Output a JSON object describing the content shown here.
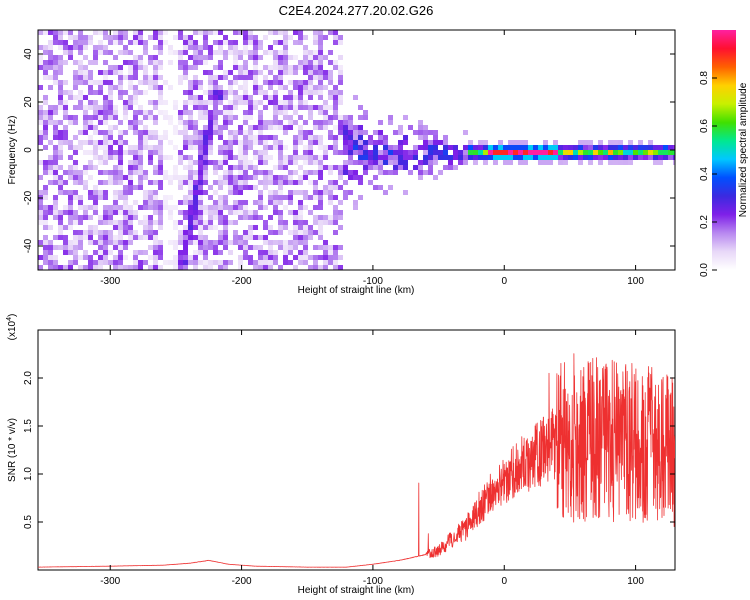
{
  "chart_data": [
    {
      "type": "heatmap",
      "title": "C2E4.2024.277.20.02.G26",
      "xlabel": "Height of straight line (km)",
      "ylabel": "Frequency (Hz)",
      "xlim": [
        -355,
        130
      ],
      "ylim": [
        -50,
        50
      ],
      "xticks": [
        -300,
        -200,
        -100,
        0,
        100
      ],
      "yticks": [
        -40,
        -20,
        0,
        20,
        40
      ],
      "colorbar": {
        "label": "Normalized spectral amplitude",
        "range": [
          0,
          1
        ],
        "ticks": [
          0.0,
          0.2,
          0.4,
          0.6,
          0.8
        ],
        "tick_labels": [
          "0.0",
          "0.2",
          "0.4",
          "0.6",
          "0.8"
        ],
        "colors": [
          "#ffffff",
          "#e8d8f8",
          "#b888f0",
          "#7f20e8",
          "#3b2ae0",
          "#0050ff",
          "#00c8ff",
          "#00e890",
          "#40e000",
          "#c8f000",
          "#ffd000",
          "#ff6000",
          "#ff1030",
          "#ff20a0"
        ]
      },
      "features": [
        {
          "feature": "broadband noise",
          "x_range": [
            -355,
            -125
          ],
          "amplitude": 0.1
        },
        {
          "feature": "diagonal streak",
          "x": [
            -248,
            -220
          ],
          "y": [
            -48,
            25
          ],
          "amplitude": 0.22
        },
        {
          "feature": "signal tone",
          "x_range": [
            -30,
            130
          ],
          "y": 0,
          "amplitude": 0.9
        }
      ]
    },
    {
      "type": "line",
      "xlabel": "Height of straight line (km)",
      "ylabel": "SNR (10 * v/v)",
      "y_multiplier": "(x10",
      "y_multiplier_exp": "4",
      "y_multiplier_close": ")",
      "xlim": [
        -355,
        130
      ],
      "ylim": [
        0,
        2.5
      ],
      "xticks": [
        -300,
        -200,
        -100,
        0,
        100
      ],
      "yticks": [
        0.5,
        1.0,
        1.5,
        2.0
      ],
      "ytick_labels": [
        "0.5",
        "1.0",
        "1.5",
        "2.0"
      ],
      "series": [
        {
          "color": "#ee3030",
          "x": [
            -355,
            -300,
            -260,
            -240,
            -225,
            -210,
            -190,
            -150,
            -120,
            -100,
            -80,
            -70,
            -60,
            -50,
            -40,
            -30,
            -20,
            -10,
            0,
            10,
            20,
            30,
            40,
            50,
            60,
            70,
            80,
            90,
            100,
            110,
            120,
            130
          ],
          "y": [
            0.03,
            0.04,
            0.05,
            0.07,
            0.1,
            0.06,
            0.04,
            0.03,
            0.03,
            0.06,
            0.1,
            0.13,
            0.16,
            0.2,
            0.32,
            0.42,
            0.62,
            0.8,
            0.95,
            1.05,
            1.15,
            1.25,
            1.33,
            1.38,
            1.4,
            1.38,
            1.35,
            1.33,
            1.32,
            1.3,
            1.28,
            1.25
          ]
        }
      ]
    }
  ]
}
